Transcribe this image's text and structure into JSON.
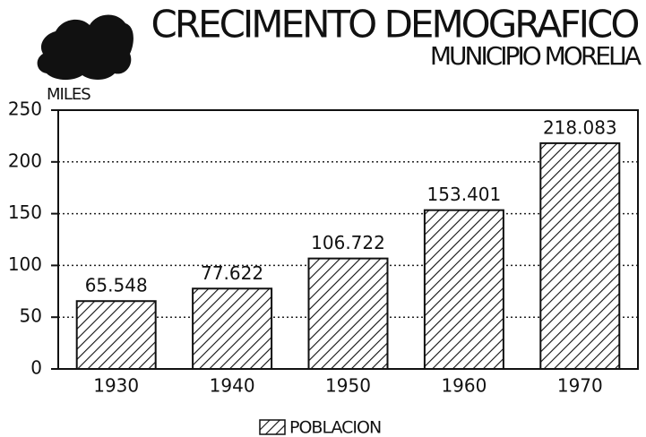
{
  "chart_data": {
    "type": "bar",
    "title": "CRECIMENTO DEMOGRAFICO",
    "subtitle": "MUNICIPIO MORELIA",
    "y_label": "MILES",
    "categories": [
      "1930",
      "1940",
      "1950",
      "1960",
      "1970"
    ],
    "series": [
      {
        "name": "POBLACION",
        "color": "#111111",
        "values": [
          65.548,
          77.622,
          106.722,
          153.401,
          218.083
        ]
      }
    ],
    "ylim": [
      0,
      250
    ],
    "yticks": [
      0,
      50,
      100,
      150,
      200,
      250
    ],
    "grid": true
  }
}
